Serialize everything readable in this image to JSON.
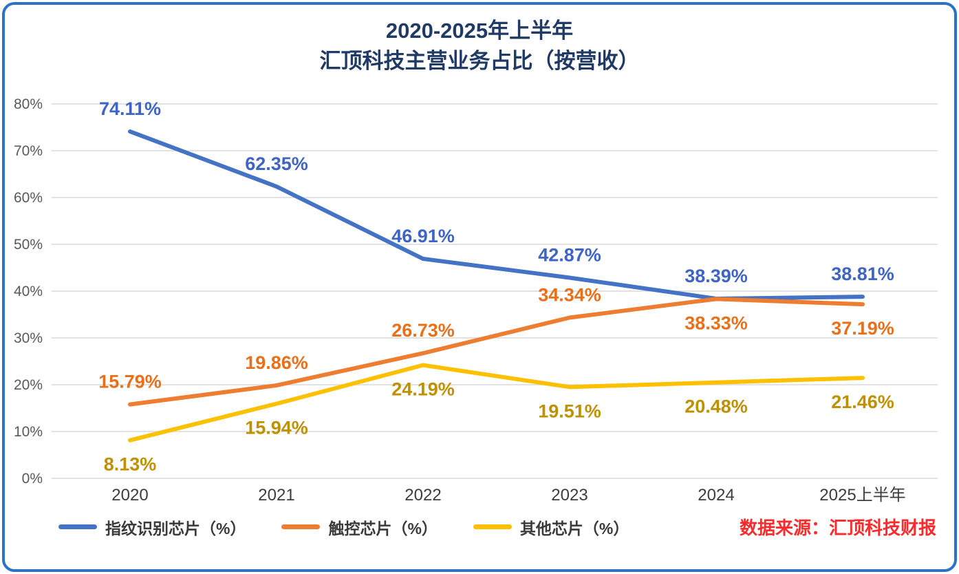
{
  "chart": {
    "title_line1": "2020-2025年上半年",
    "title_line2": "汇顶科技主营业务占比（按营收）",
    "source": "数据来源：汇顶科技财报",
    "border_color": "#2b72c8"
  },
  "chart_data": {
    "type": "line",
    "title": "2020-2025年上半年 汇顶科技主营业务占比（按营收）",
    "categories": [
      "2020",
      "2021",
      "2022",
      "2023",
      "2024",
      "2025上半年"
    ],
    "series": [
      {
        "name": "指纹识别芯片（%）",
        "color": "#4472C4",
        "label_color": "#3E64C4",
        "values": [
          74.11,
          62.35,
          46.91,
          42.87,
          38.39,
          38.81
        ],
        "label_side": [
          "above",
          "above",
          "above",
          "above",
          "above",
          "above"
        ]
      },
      {
        "name": "触控芯片（%）",
        "color": "#ED7D31",
        "label_color": "#E8701B",
        "values": [
          15.79,
          19.86,
          26.73,
          34.34,
          38.33,
          37.19
        ],
        "label_side": [
          "above",
          "above",
          "above",
          "above",
          "below",
          "below"
        ]
      },
      {
        "name": "其他芯片（%）",
        "color": "#FFC000",
        "label_color": "#BF9000",
        "values": [
          8.13,
          15.94,
          24.19,
          19.51,
          20.48,
          21.46
        ],
        "label_side": [
          "below",
          "below",
          "below",
          "below",
          "below",
          "below"
        ]
      }
    ],
    "y_axis": {
      "min": 0,
      "max": 80,
      "step": 10,
      "suffix": "%"
    },
    "ylim": [
      0,
      80
    ],
    "grid": true,
    "gridline_color": "#D9D9D9",
    "legend_position": "bottom-left"
  }
}
